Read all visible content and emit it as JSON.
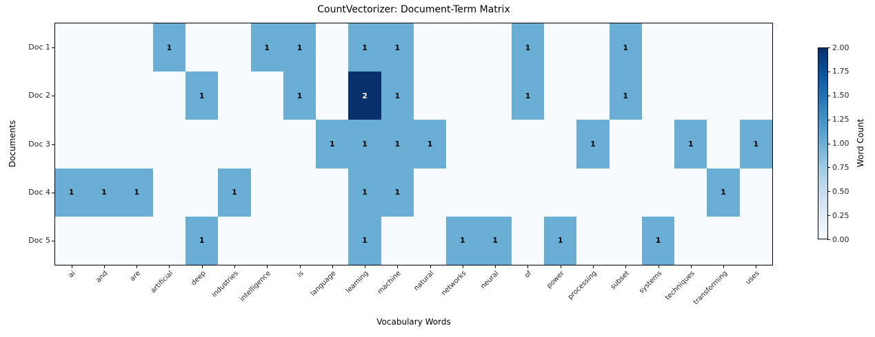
{
  "chart_data": {
    "type": "heatmap",
    "title": "CountVectorizer: Document-Term Matrix",
    "xlabel": "Vocabulary Words",
    "ylabel": "Documents",
    "colormap": "Blues",
    "vmin": 0,
    "vmax": 2,
    "x_categories": [
      "ai",
      "and",
      "are",
      "artificial",
      "deep",
      "industries",
      "intelligence",
      "is",
      "language",
      "learning",
      "machine",
      "natural",
      "networks",
      "neural",
      "of",
      "power",
      "processing",
      "subset",
      "systems",
      "techniques",
      "transforming",
      "uses"
    ],
    "y_categories": [
      "Doc 1",
      "Doc 2",
      "Doc 3",
      "Doc 4",
      "Doc 5"
    ],
    "values": [
      [
        0,
        0,
        0,
        1,
        0,
        0,
        1,
        1,
        0,
        1,
        1,
        0,
        0,
        0,
        1,
        0,
        0,
        1,
        0,
        0,
        0,
        0
      ],
      [
        0,
        0,
        0,
        0,
        1,
        0,
        0,
        1,
        0,
        2,
        1,
        0,
        0,
        0,
        1,
        0,
        0,
        1,
        0,
        0,
        0,
        0
      ],
      [
        0,
        0,
        0,
        0,
        0,
        0,
        0,
        0,
        1,
        1,
        1,
        1,
        0,
        0,
        0,
        0,
        1,
        0,
        0,
        1,
        0,
        1
      ],
      [
        1,
        1,
        1,
        0,
        0,
        1,
        0,
        0,
        0,
        1,
        1,
        0,
        0,
        0,
        0,
        0,
        0,
        0,
        0,
        0,
        1,
        0
      ],
      [
        0,
        0,
        0,
        0,
        1,
        0,
        0,
        0,
        0,
        1,
        0,
        0,
        1,
        1,
        0,
        1,
        0,
        0,
        1,
        0,
        0,
        0
      ]
    ],
    "value_colors": {
      "0": "#f7fbff",
      "1": "#6aaed6",
      "2": "#08306b"
    },
    "annotation_text_colors": {
      "1": "#000000",
      "2": "#ffffff"
    },
    "legend_position": "right"
  },
  "colorbar": {
    "label": "Word Count",
    "ticks": [
      "2.00",
      "1.75",
      "1.50",
      "1.25",
      "1.00",
      "0.75",
      "0.50",
      "0.25",
      "0.00"
    ],
    "gradient_stops": [
      "#f7fbff",
      "#deebf7",
      "#c6dbef",
      "#9ecae1",
      "#6baed6",
      "#4292c6",
      "#2171b5",
      "#08519c",
      "#08306b"
    ]
  }
}
